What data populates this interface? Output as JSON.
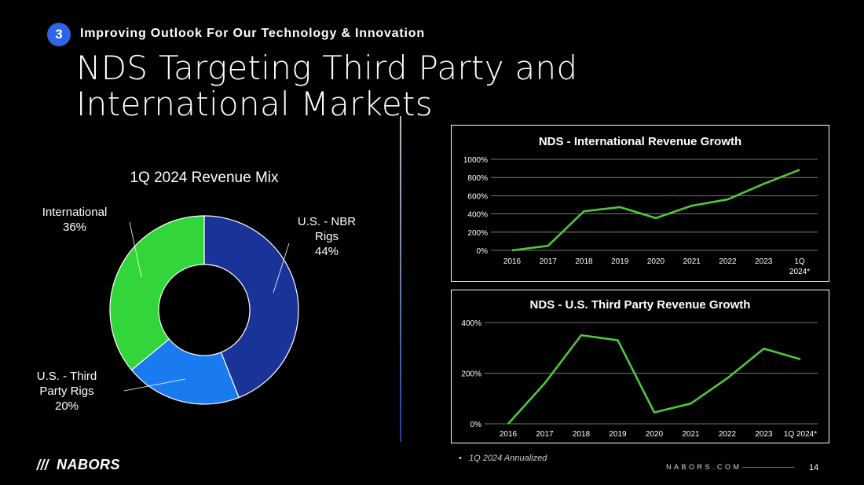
{
  "header": {
    "section_number": "3",
    "section_title": "Improving Outlook For Our Technology & Innovation",
    "title": "NDS Targeting Third Party and International Markets"
  },
  "colors": {
    "badge": "#2f66e8",
    "nbr": "#1a3399",
    "third_party": "#1a7af0",
    "international": "#33d63a",
    "line": "#4fc93a",
    "background": "#000000"
  },
  "footnote": "1Q 2024 Annualized",
  "footer": {
    "logo_text": "NABORS",
    "website": "NABORS.COM",
    "page_number": "14"
  },
  "chart_data": [
    {
      "type": "pie",
      "title": "1Q 2024 Revenue Mix",
      "donut": true,
      "slices": [
        {
          "label_lines": [
            "U.S. - NBR",
            "Rigs"
          ],
          "value": 44,
          "value_label": "44%",
          "color": "#1a3399"
        },
        {
          "label_lines": [
            "U.S. - Third",
            "Party Rigs"
          ],
          "value": 20,
          "value_label": "20%",
          "color": "#1a7af0"
        },
        {
          "label_lines": [
            "International"
          ],
          "value": 36,
          "value_label": "36%",
          "color": "#33d63a"
        }
      ]
    },
    {
      "type": "line",
      "title": "NDS - International Revenue Growth",
      "categories": [
        "2016",
        "2017",
        "2018",
        "2019",
        "2020",
        "2021",
        "2022",
        "2023",
        "1Q 2024*"
      ],
      "series": [
        {
          "name": "International Revenue Growth",
          "values": [
            0,
            50,
            430,
            475,
            355,
            490,
            560,
            730,
            885
          ]
        }
      ],
      "ylim": [
        0,
        1000
      ],
      "yticks": [
        0,
        200,
        400,
        600,
        800,
        1000
      ],
      "ytick_labels": [
        "0%",
        "200%",
        "400%",
        "600%",
        "800%",
        "1000%"
      ],
      "grid": true
    },
    {
      "type": "line",
      "title": "NDS - U.S. Third Party Revenue Growth",
      "categories": [
        "2016",
        "2017",
        "2018",
        "2019",
        "2020",
        "2021",
        "2022",
        "2023",
        "1Q 2024*"
      ],
      "series": [
        {
          "name": "U.S. Third Party Revenue Growth",
          "values": [
            0,
            160,
            350,
            330,
            45,
            80,
            180,
            297,
            255
          ]
        }
      ],
      "ylim": [
        0,
        400
      ],
      "yticks": [
        0,
        200,
        400
      ],
      "ytick_labels": [
        "0%",
        "200%",
        "400%"
      ],
      "grid": true
    }
  ]
}
